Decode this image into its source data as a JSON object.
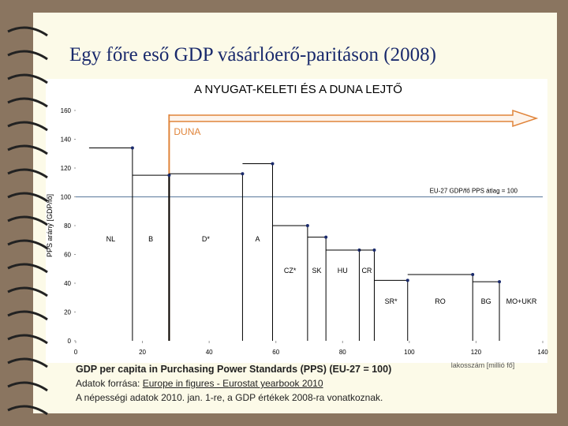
{
  "slide_title": "Egy főre eső GDP vásárlóerő-paritáson (2008)",
  "chart_data": {
    "type": "step",
    "title": "A NYUGAT-KELETI ÉS A DUNA LEJTŐ",
    "y_label": "PPS arány [GDP/fő]",
    "x_label": "lakosszám [millió fő]",
    "categories": [
      "NL",
      "B",
      "D*",
      "A",
      "CZ*",
      "SK",
      "HU",
      "CR",
      "SR*",
      "RO",
      "BG",
      "MO+UKR"
    ],
    "x_start": [
      4,
      17,
      28,
      50,
      59,
      69.5,
      75,
      85,
      89.5,
      99.5,
      119,
      null
    ],
    "x": [
      17,
      28,
      50,
      59,
      69.5,
      75,
      85,
      89.5,
      99.5,
      119,
      127,
      null
    ],
    "values": [
      134,
      115,
      116,
      123,
      80,
      72,
      63,
      63,
      42,
      46,
      41,
      null
    ],
    "color": "#000000",
    "xlim": [
      0,
      140
    ],
    "xticks": [
      0,
      20,
      40,
      60,
      80,
      100,
      120,
      140
    ],
    "ylim": [
      0,
      160
    ],
    "yticks": [
      0,
      20,
      40,
      60,
      80,
      100,
      120,
      140,
      160
    ],
    "reference": {
      "value": 100,
      "label": "EU-27 GDP/fő PPS átlag = 100",
      "color": "#6f8aa8"
    },
    "river": {
      "x": 28,
      "label": "DUNA",
      "color": "#e0843a"
    }
  },
  "footer": {
    "line1": "GDP per capita in Purchasing Power Standards (PPS) (EU-27 = 100)",
    "source_prefix": "Adatok forrása: ",
    "source_link": "Europe in figures - Eurostat yearbook 2010",
    "line3": "A népességi adatok 2010. jan. 1-re, a GDP értékek 2008-ra vonatkoznak."
  }
}
